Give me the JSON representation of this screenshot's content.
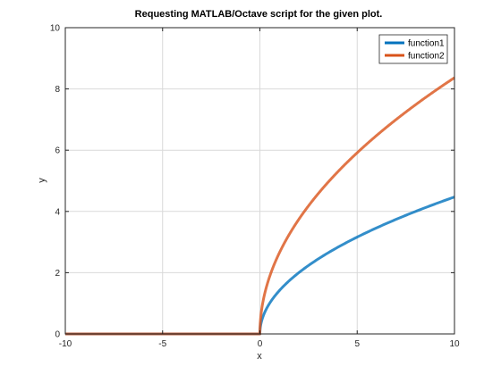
{
  "chart_data": {
    "type": "line",
    "title": "Requesting MATLAB/Octave script for the given plot.",
    "xlabel": "x",
    "ylabel": "y",
    "xlim": [
      -10,
      10
    ],
    "ylim": [
      0,
      10
    ],
    "xticks": [
      -10,
      -5,
      0,
      5,
      10
    ],
    "yticks": [
      0,
      2,
      4,
      6,
      8,
      10
    ],
    "grid": true,
    "legend_position": "top-right",
    "series": [
      {
        "name": "function1",
        "color": "#0072bd",
        "x": [
          -10,
          -5,
          0,
          0.1,
          0.5,
          1,
          2,
          3,
          4,
          5,
          6,
          7,
          8,
          9,
          10
        ],
        "y": [
          0,
          0,
          0,
          0.447,
          1.0,
          1.414,
          2.0,
          2.449,
          2.828,
          3.162,
          3.464,
          3.742,
          4.0,
          4.243,
          4.472
        ]
      },
      {
        "name": "function2",
        "color": "#d95319",
        "x": [
          -10,
          -5,
          0,
          0.1,
          0.5,
          1,
          2,
          3,
          4,
          5,
          6,
          7,
          8,
          9,
          10
        ],
        "y": [
          0,
          0,
          0,
          0.836,
          1.871,
          2.646,
          3.742,
          4.583,
          5.292,
          5.916,
          6.481,
          7.0,
          7.483,
          7.937,
          8.367
        ]
      }
    ]
  }
}
